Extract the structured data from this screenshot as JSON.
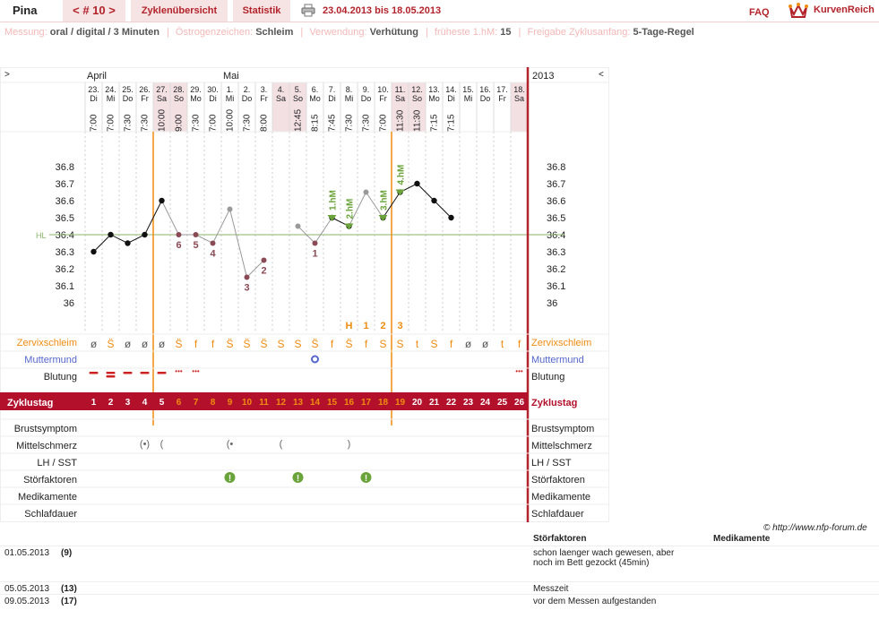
{
  "header": {
    "name": "Pina",
    "cycle_label": "< # 10 >",
    "tabs": [
      "Zyklenübersicht",
      "Statistik"
    ],
    "date_range": "23.04.2013 bis 18.05.2013",
    "faq": "FAQ",
    "logo_text": "KurvenReich",
    "icons": [
      "printer-icon",
      "crown-logo-icon"
    ]
  },
  "settings": [
    {
      "label": "Messung:",
      "value": "oral / digital / 3 Minuten"
    },
    {
      "label": "Östrogenzeichen:",
      "value": "Schleim"
    },
    {
      "label": "Verwendung:",
      "value": "Verhütung"
    },
    {
      "label": "früheste 1.hM:",
      "value": "15"
    },
    {
      "label": "Freigabe Zyklusanfang:",
      "value": "5-Tage-Regel"
    }
  ],
  "colors": {
    "brand": "#b3232b",
    "light": "#f6e3e3",
    "orange": "#f08c10",
    "green": "#6aa33a",
    "blue": "#5566cc",
    "coverline": "#8bb56a"
  },
  "chart": {
    "nav_left": ">",
    "nav_right": "<",
    "year": "2013",
    "months": [
      {
        "day_index": 0,
        "label": "April"
      },
      {
        "day_index": 8,
        "label": "Mai"
      }
    ],
    "dates": [
      "23.",
      "24.",
      "25.",
      "26.",
      "27.",
      "28.",
      "29.",
      "30.",
      "1.",
      "2.",
      "3.",
      "4.",
      "5.",
      "6.",
      "7.",
      "8.",
      "9.",
      "10.",
      "11.",
      "12.",
      "13.",
      "14.",
      "15.",
      "16.",
      "17.",
      "18."
    ],
    "weekdays": [
      "Di",
      "Mi",
      "Do",
      "Fr",
      "Sa",
      "So",
      "Mo",
      "Di",
      "Mi",
      "Do",
      "Fr",
      "Sa",
      "So",
      "Mo",
      "Di",
      "Mi",
      "Do",
      "Fr",
      "Sa",
      "So",
      "Mo",
      "Di",
      "Mi",
      "Do",
      "Fr",
      "Sa"
    ],
    "weekend_index": [
      4,
      5,
      11,
      12,
      18,
      19,
      25
    ],
    "times": [
      "7:00",
      "7:00",
      "7:30",
      "7:30",
      "10:00",
      "9:00",
      "7:30",
      "7:00",
      "10:00",
      "7:30",
      "8:00",
      "",
      "12:45",
      "8:15",
      "7:45",
      "7:30",
      "7:30",
      "7:00",
      "11:30",
      "11:30",
      "7:15",
      "7:15",
      "",
      "",
      "",
      ""
    ],
    "y_ticks": [
      "36.8",
      "36.7",
      "36.6",
      "36.5",
      "36.4",
      "36.3",
      "36.2",
      "36.1",
      "36"
    ],
    "coverline_label": "HL",
    "coverline_value": 36.4,
    "first_hm_label": "H",
    "hm_markers": [
      {
        "day_index": 14,
        "label": "1.hM"
      },
      {
        "day_index": 15,
        "label": "2.hM"
      },
      {
        "day_index": 17,
        "label": "3.hM"
      },
      {
        "day_index": 18,
        "label": "4.hM"
      }
    ],
    "mucus_markers": [
      {
        "day_index": 16,
        "label": "1"
      },
      {
        "day_index": 17,
        "label": "2"
      },
      {
        "day_index": 18,
        "label": "3"
      }
    ],
    "rows": {
      "zervix": "Zervixschleim",
      "muttermund": "Muttermund",
      "blutung": "Blutung",
      "zyklustag": "Zyklustag",
      "brust": "Brustsymptom",
      "mittel": "Mittelschmerz",
      "lh": "LH / SST",
      "stoer": "Störfaktoren",
      "medi": "Medikamente",
      "schlaf": "Schlafdauer"
    },
    "mucus": [
      "ø",
      "S̈",
      "ø",
      "ø",
      "ø",
      "S̈",
      "f",
      "f",
      "S̈",
      "S̈",
      "S̈",
      "S",
      "S",
      "S̈",
      "f",
      "S̈",
      "f",
      "S",
      "S",
      "t",
      "S",
      "f",
      "ø",
      "ø",
      "t",
      "f"
    ],
    "cycle_days": [
      "1",
      "2",
      "3",
      "4",
      "5",
      "6",
      "7",
      "8",
      "9",
      "10",
      "11",
      "12",
      "13",
      "14",
      "15",
      "16",
      "17",
      "18",
      "19",
      "20",
      "21",
      "22",
      "23",
      "24",
      "25",
      "26"
    ]
  },
  "chart_data": {
    "type": "line",
    "title": "",
    "xlabel": "Zyklustag",
    "ylabel": "",
    "ylim": [
      36.0,
      36.85
    ],
    "x": [
      1,
      2,
      3,
      4,
      5,
      6,
      7,
      8,
      9,
      10,
      11,
      12,
      13,
      14,
      15,
      16,
      17,
      18,
      19,
      20,
      21,
      22
    ],
    "series": [
      {
        "name": "",
        "kind": "counted",
        "values": [
          36.3,
          36.4,
          36.35,
          36.4,
          36.6,
          null,
          null,
          null,
          null,
          null,
          null,
          null,
          null,
          null,
          36.5,
          36.45,
          null,
          36.5,
          36.65,
          36.7,
          36.6,
          36.5
        ]
      },
      {
        "name": "",
        "kind": "excluded",
        "values": [
          null,
          null,
          null,
          null,
          36.6,
          36.4,
          36.4,
          36.35,
          36.55,
          36.15,
          36.25,
          null,
          36.45,
          36.35,
          36.5,
          36.45,
          36.65,
          36.5,
          null,
          null,
          null,
          null
        ]
      }
    ],
    "low_counts": [
      {
        "day": 6,
        "label": "6"
      },
      {
        "day": 7,
        "label": "5"
      },
      {
        "day": 8,
        "label": "4"
      },
      {
        "day": 10,
        "label": "3"
      },
      {
        "day": 11,
        "label": "2"
      },
      {
        "day": 14,
        "label": "1"
      }
    ]
  },
  "notes": {
    "col_stoer": "Störfaktoren",
    "col_medi": "Medikamente",
    "credit": "© http://www.nfp-forum.de",
    "rows": [
      {
        "date": "01.05.2013",
        "day": "(9)",
        "text": "schon laenger wach gewesen, aber noch im Bett gezockt (45min)"
      },
      {
        "date": "05.05.2013",
        "day": "(13)",
        "text": "Messzeit"
      },
      {
        "date": "09.05.2013",
        "day": "(17)",
        "text": "vor dem Messen aufgestanden"
      }
    ]
  }
}
